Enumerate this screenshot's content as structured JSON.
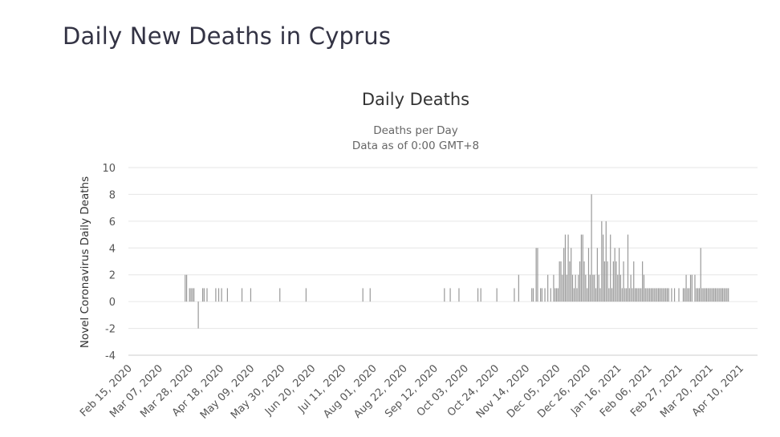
{
  "page": {
    "title": "Daily New Deaths in Cyprus"
  },
  "chart_data": {
    "type": "bar",
    "title": "Daily Deaths",
    "subtitle": [
      "Deaths per Day",
      "Data as of 0:00 GMT+8"
    ],
    "ylabel": "Novel Coronavirus Daily Deaths",
    "xlabel": "",
    "ylim": [
      -4,
      10
    ],
    "yticks": [
      10,
      8,
      6,
      4,
      2,
      0,
      -2,
      -4
    ],
    "x_start": "Feb 15, 2020",
    "x_end": "Apr 22, 2021",
    "xtick_labels": [
      "Feb 15, 2020",
      "Mar 07, 2020",
      "Mar 28, 2020",
      "Apr 18, 2020",
      "May 09, 2020",
      "May 30, 2020",
      "Jun 20, 2020",
      "Jul 11, 2020",
      "Aug 01, 2020",
      "Aug 22, 2020",
      "Sep 12, 2020",
      "Oct 03, 2020",
      "Oct 24, 2020",
      "Nov 14, 2020",
      "Dec 05, 2020",
      "Dec 26, 2020",
      "Jan 16, 2021",
      "Feb 06, 2021",
      "Feb 27, 2021",
      "Mar 20, 2021",
      "Apr 10, 2021"
    ],
    "series": [
      {
        "name": "Daily Deaths",
        "color": "#999999",
        "days": [
          39,
          40,
          42,
          43,
          44,
          45,
          48,
          51,
          52,
          54,
          60,
          62,
          64,
          68,
          78,
          84,
          104,
          122,
          161,
          166,
          217,
          221,
          227,
          240,
          242,
          253,
          265,
          268,
          277,
          278,
          280,
          281,
          283,
          284,
          286,
          288,
          290,
          292,
          293,
          294,
          295,
          296,
          297,
          298,
          299,
          300,
          301,
          302,
          303,
          304,
          305,
          306,
          307,
          308,
          309,
          310,
          311,
          312,
          313,
          314,
          315,
          316,
          317,
          318,
          319,
          320,
          321,
          322,
          323,
          324,
          325,
          326,
          327,
          328,
          329,
          330,
          331,
          332,
          333,
          334,
          335,
          336,
          337,
          338,
          339,
          340,
          341,
          342,
          343,
          344,
          345,
          346,
          347,
          348,
          349,
          350,
          351,
          352,
          353,
          354,
          355,
          356,
          357,
          358,
          359,
          360,
          361,
          362,
          363,
          364,
          365,
          366,
          367,
          368,
          369,
          370,
          371,
          373,
          375,
          378,
          381,
          382,
          383,
          384,
          385,
          386,
          387,
          389,
          390,
          391,
          392,
          393,
          394,
          395,
          396,
          397,
          398,
          399,
          400,
          401,
          402,
          403,
          404,
          405,
          406,
          407,
          408,
          409,
          410,
          411,
          412
        ],
        "values": [
          2,
          2,
          1,
          1,
          1,
          1,
          -2,
          1,
          1,
          1,
          1,
          1,
          1,
          1,
          1,
          1,
          1,
          1,
          1,
          1,
          1,
          1,
          1,
          1,
          1,
          1,
          1,
          2,
          1,
          1,
          4,
          4,
          1,
          1,
          1,
          2,
          1,
          2,
          1,
          1,
          1,
          3,
          3,
          2,
          4,
          5,
          2,
          5,
          3,
          4,
          2,
          1,
          2,
          1,
          2,
          3,
          5,
          5,
          3,
          2,
          1,
          4,
          2,
          8,
          2,
          2,
          1,
          4,
          2,
          1,
          6,
          5,
          3,
          6,
          3,
          1,
          5,
          1,
          3,
          4,
          3,
          2,
          4,
          2,
          1,
          3,
          1,
          1,
          5,
          1,
          2,
          1,
          3,
          1,
          1,
          1,
          1,
          1,
          3,
          2,
          1,
          1,
          1,
          1,
          1,
          1,
          1,
          1,
          1,
          1,
          1,
          1,
          1,
          1,
          1,
          1,
          1,
          1,
          1,
          1,
          1,
          1,
          2,
          1,
          1,
          2,
          2,
          2,
          1,
          1,
          1,
          4,
          1,
          1,
          1,
          1,
          1,
          1,
          1,
          1,
          1,
          1,
          1,
          1,
          1,
          1,
          1,
          1,
          1,
          1,
          1
        ]
      }
    ]
  }
}
